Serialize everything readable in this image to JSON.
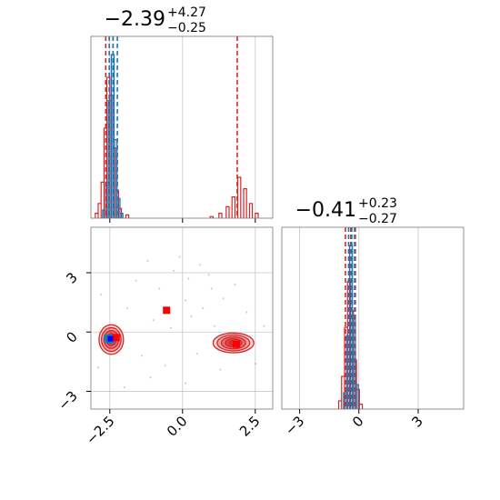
{
  "chart_data": {
    "type": "corner",
    "parameters": 2,
    "grid": true,
    "colors": {
      "series_a": "#d62728",
      "series_b": "#1f77b4",
      "marker": "#ff0000",
      "marker_b": "#0000ff"
    },
    "axes": {
      "p1": {
        "range": [
          -3.15,
          3.1
        ],
        "ticks": [
          -2.5,
          0.0,
          2.5
        ],
        "tick_labels": [
          "−2.5",
          "0.0",
          "2.5"
        ]
      },
      "p2": {
        "range": [
          -3.9,
          5.3
        ],
        "ticks": [
          -3,
          0,
          3
        ],
        "tick_labels": [
          "−3",
          "0",
          "3"
        ]
      }
    },
    "panels": {
      "p1_marginal": {
        "title_value": "−2.39",
        "title_plus": "+4.27",
        "title_minus": "−0.25",
        "quantile_lines": [
          -2.64,
          -2.39,
          1.88
        ],
        "series_b_quantile_lines": [
          -2.52,
          -2.39,
          -2.24
        ],
        "series_a_hist": [
          {
            "x": -2.95,
            "y": 0.03
          },
          {
            "x": -2.85,
            "y": 0.09
          },
          {
            "x": -2.75,
            "y": 0.22
          },
          {
            "x": -2.65,
            "y": 0.55
          },
          {
            "x": -2.55,
            "y": 0.86
          },
          {
            "x": -2.45,
            "y": 0.75
          },
          {
            "x": -2.35,
            "y": 0.43
          },
          {
            "x": -2.25,
            "y": 0.17
          },
          {
            "x": -2.15,
            "y": 0.06
          },
          {
            "x": -1.9,
            "y": 0.02
          },
          {
            "x": 1.0,
            "y": 0.01
          },
          {
            "x": 1.3,
            "y": 0.03
          },
          {
            "x": 1.55,
            "y": 0.07
          },
          {
            "x": 1.75,
            "y": 0.13
          },
          {
            "x": 1.95,
            "y": 0.25
          },
          {
            "x": 2.15,
            "y": 0.18
          },
          {
            "x": 2.35,
            "y": 0.09
          },
          {
            "x": 2.55,
            "y": 0.03
          }
        ],
        "series_b_hist": [
          {
            "x": -2.7,
            "y": 0.05
          },
          {
            "x": -2.6,
            "y": 0.22
          },
          {
            "x": -2.5,
            "y": 0.72
          },
          {
            "x": -2.4,
            "y": 1.0
          },
          {
            "x": -2.3,
            "y": 0.48
          },
          {
            "x": -2.2,
            "y": 0.12
          },
          {
            "x": -2.1,
            "y": 0.03
          }
        ]
      },
      "p2_marginal": {
        "title_value": "−0.41",
        "title_plus": "+0.23",
        "title_minus": "−0.27",
        "quantile_lines": [
          -0.68,
          -0.41,
          -0.18
        ],
        "series_b_quantile_lines": [
          -0.52,
          -0.36,
          -0.22
        ],
        "series_a_hist": [
          {
            "x": -0.95,
            "y": 0.05
          },
          {
            "x": -0.8,
            "y": 0.2
          },
          {
            "x": -0.65,
            "y": 0.5
          },
          {
            "x": -0.5,
            "y": 0.78
          },
          {
            "x": -0.35,
            "y": 0.6
          },
          {
            "x": -0.2,
            "y": 0.3
          },
          {
            "x": -0.05,
            "y": 0.12
          },
          {
            "x": 0.1,
            "y": 0.03
          }
        ],
        "series_b_hist": [
          {
            "x": -0.7,
            "y": 0.1
          },
          {
            "x": -0.55,
            "y": 0.45
          },
          {
            "x": -0.4,
            "y": 1.0
          },
          {
            "x": -0.25,
            "y": 0.55
          },
          {
            "x": -0.1,
            "y": 0.15
          }
        ]
      },
      "joint": {
        "modes": [
          {
            "cx": -2.45,
            "cy": -0.38,
            "rx": 0.42,
            "ry": 0.75,
            "series": "a"
          },
          {
            "cx": 1.75,
            "cy": -0.55,
            "rx": 0.7,
            "ry": 0.5,
            "series": "a"
          }
        ],
        "series_b_points": [
          {
            "x": -2.58,
            "y": -0.3
          },
          {
            "x": -2.48,
            "y": -0.32
          },
          {
            "x": -2.38,
            "y": -0.29
          },
          {
            "x": -2.52,
            "y": -0.4
          },
          {
            "x": -2.42,
            "y": -0.36
          }
        ],
        "marker_points": [
          {
            "x": -0.55,
            "y": 1.1
          },
          {
            "x": -2.28,
            "y": -0.28
          },
          {
            "x": 1.85,
            "y": -0.62
          }
        ],
        "scatter": [
          {
            "x": -1.6,
            "y": 2.6
          },
          {
            "x": -1.2,
            "y": 3.6
          },
          {
            "x": -0.8,
            "y": 2.2
          },
          {
            "x": -0.3,
            "y": 3.1
          },
          {
            "x": 0.2,
            "y": 2.7
          },
          {
            "x": 0.6,
            "y": 3.4
          },
          {
            "x": 1.0,
            "y": 2.2
          },
          {
            "x": -2.8,
            "y": 1.9
          },
          {
            "x": -1.9,
            "y": 1.2
          },
          {
            "x": -1.0,
            "y": 0.6
          },
          {
            "x": 0.1,
            "y": 1.6
          },
          {
            "x": 0.7,
            "y": 1.2
          },
          {
            "x": 1.4,
            "y": 1.7
          },
          {
            "x": 2.2,
            "y": 1.0
          },
          {
            "x": 1.1,
            "y": 0.3
          },
          {
            "x": -0.4,
            "y": 0.2
          },
          {
            "x": -1.4,
            "y": -1.2
          },
          {
            "x": -0.6,
            "y": -1.7
          },
          {
            "x": 0.5,
            "y": -1.1
          },
          {
            "x": -1.1,
            "y": -2.3
          },
          {
            "x": 0.1,
            "y": -2.6
          },
          {
            "x": 1.3,
            "y": -1.9
          },
          {
            "x": 2.5,
            "y": -1.6
          },
          {
            "x": -2.9,
            "y": -1.8
          },
          {
            "x": -2.0,
            "y": -2.8
          },
          {
            "x": 0.9,
            "y": 2.9
          },
          {
            "x": -0.1,
            "y": 3.8
          },
          {
            "x": 2.8,
            "y": 0.3
          },
          {
            "x": 1.8,
            "y": 2.4
          },
          {
            "x": 0.3,
            "y": 0.8
          }
        ]
      }
    }
  }
}
